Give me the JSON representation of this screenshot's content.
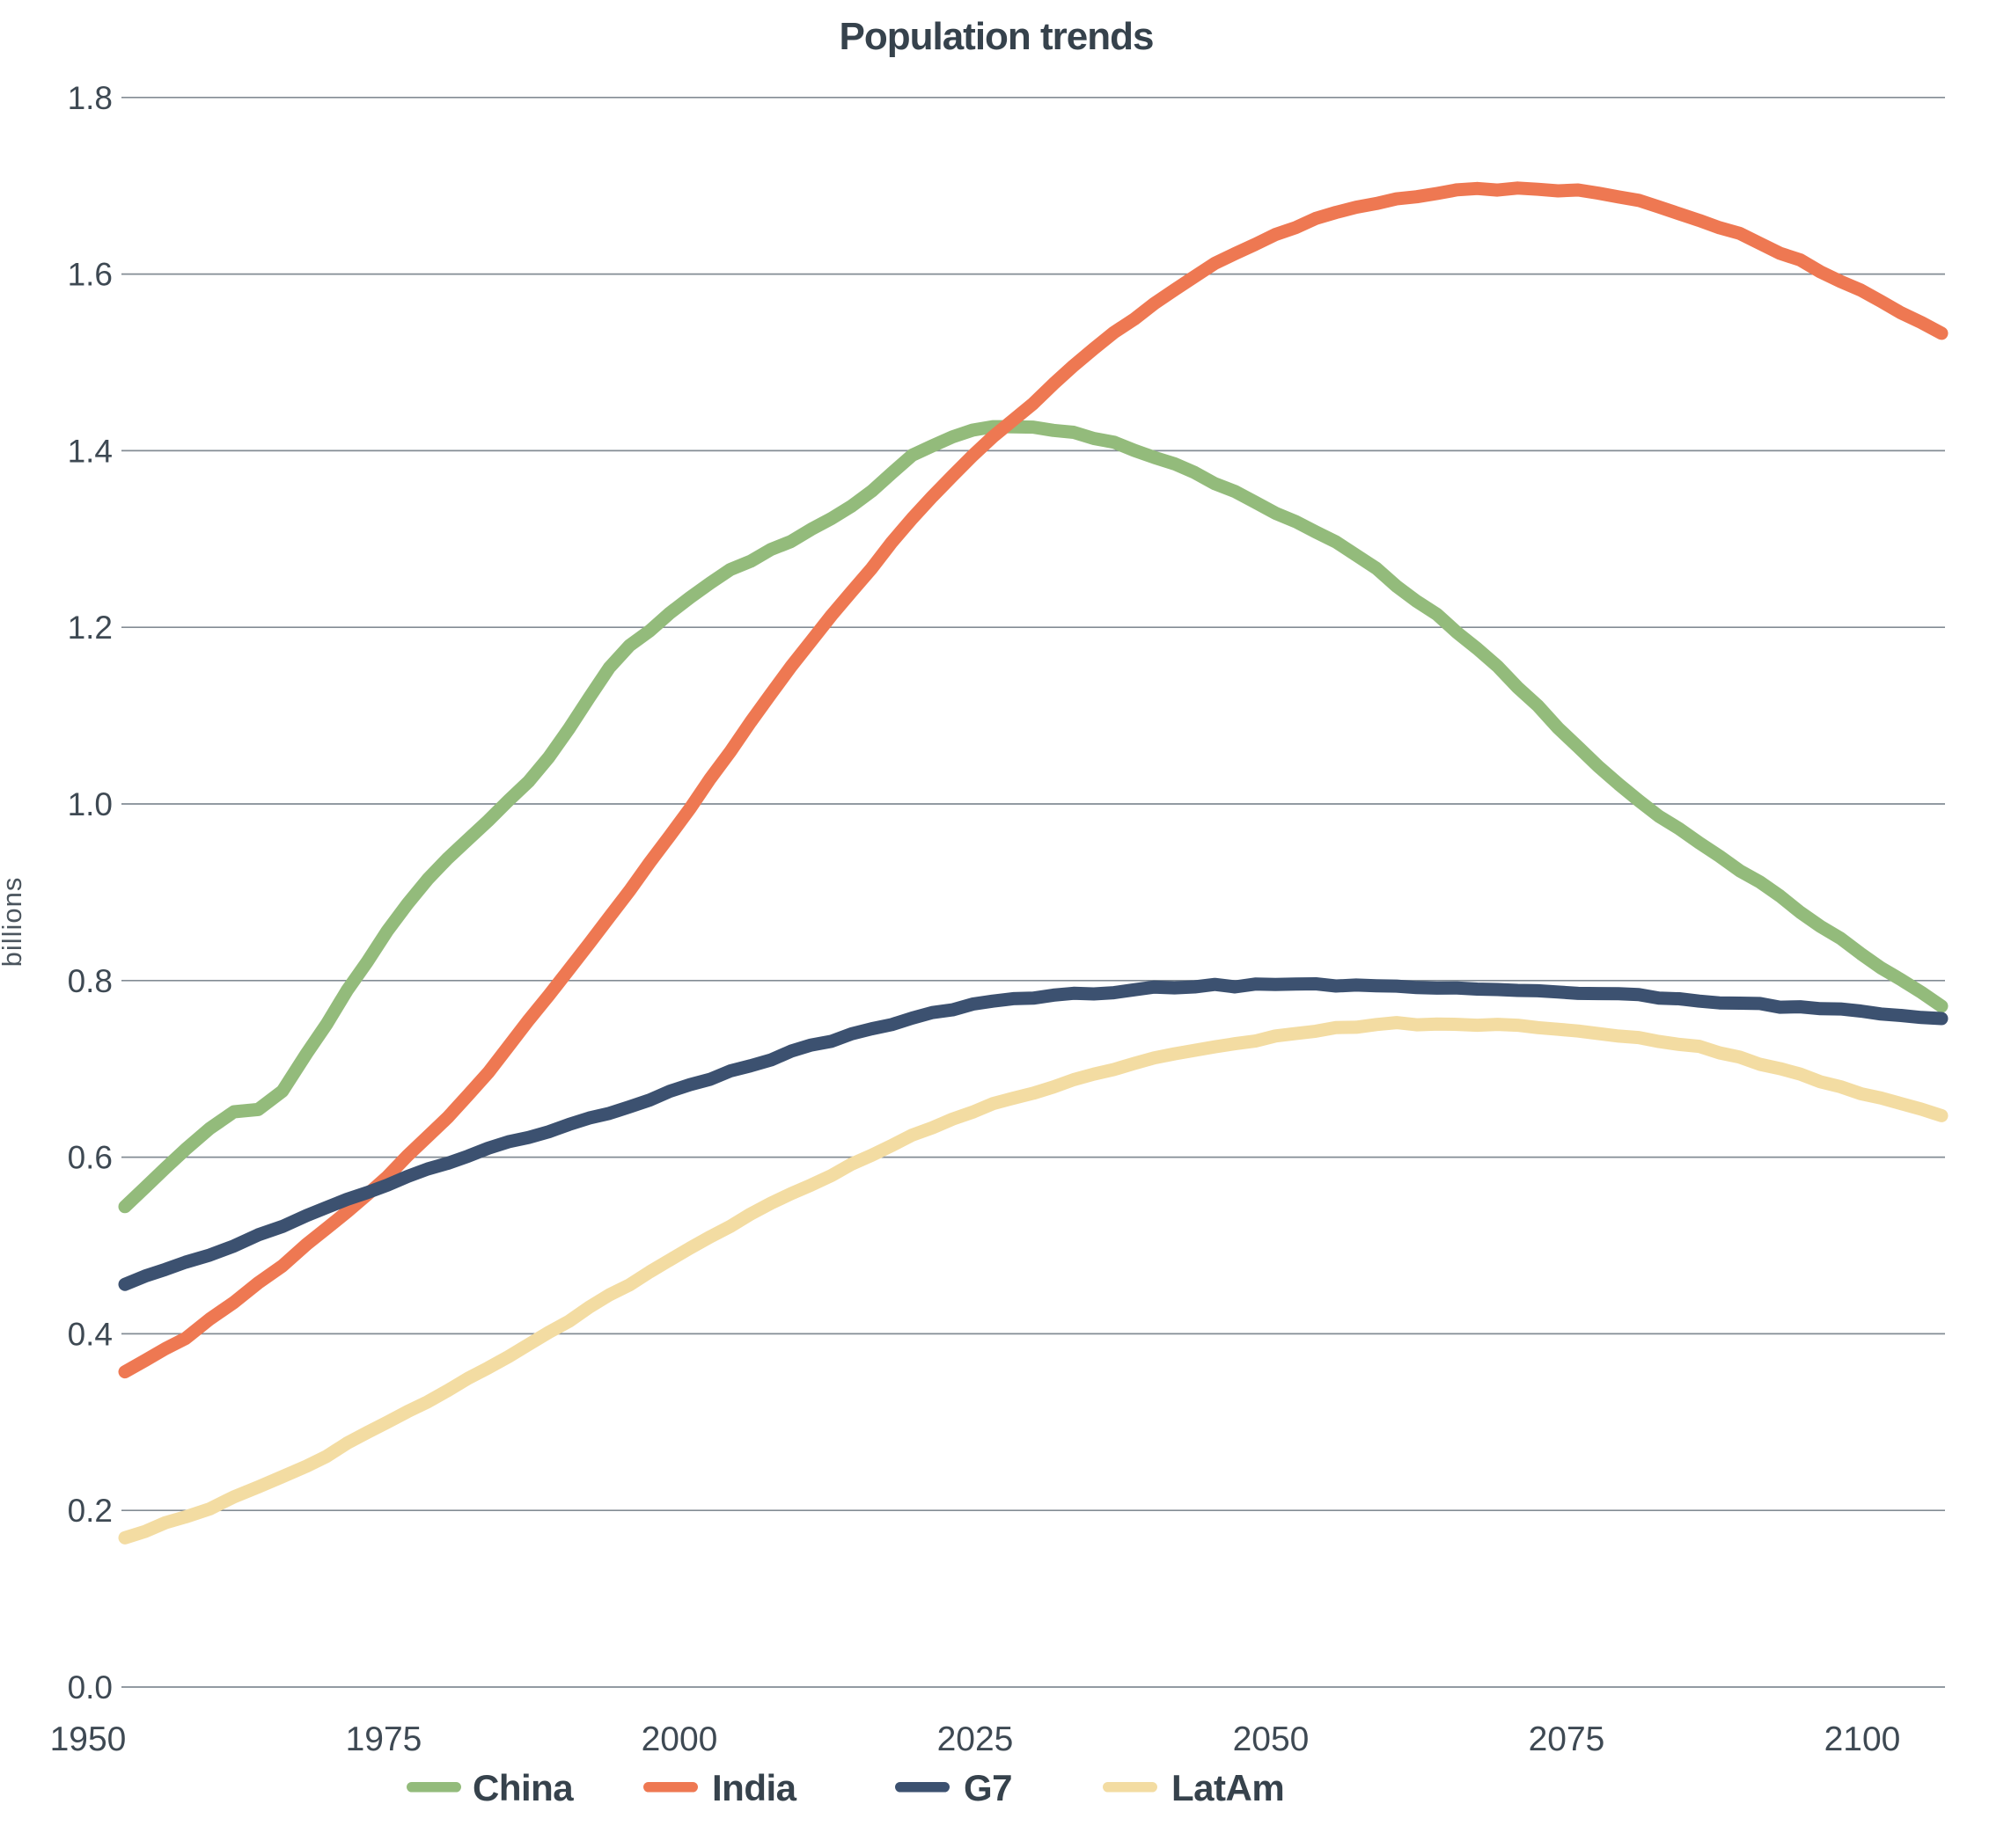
{
  "chart_data": {
    "type": "line",
    "title": "Population trends",
    "ylabel": "billions",
    "xlabel": "",
    "xlim": [
      1950,
      2100
    ],
    "ylim": [
      0.0,
      1.8
    ],
    "grid": "horizontal",
    "legend_position": "bottom",
    "x_ticks": [
      1950,
      1975,
      2000,
      2025,
      2050,
      2075,
      2100
    ],
    "y_ticks": [
      0.0,
      0.2,
      0.4,
      0.6,
      0.8,
      1.0,
      1.2,
      1.4,
      1.6,
      1.8
    ],
    "x": [
      1950,
      1955,
      1957,
      1959,
      1961,
      1963,
      1965,
      1970,
      1975,
      1980,
      1985,
      1990,
      1995,
      2000,
      2005,
      2010,
      2015,
      2020,
      2025,
      2030,
      2035,
      2040,
      2045,
      2050,
      2055,
      2060,
      2065,
      2070,
      2075,
      2080,
      2085,
      2090,
      2095,
      2100
    ],
    "series": [
      {
        "name": "China",
        "color": "#93BB7B",
        "values": [
          0.544,
          0.609,
          0.634,
          0.653,
          0.655,
          0.674,
          0.716,
          0.822,
          0.916,
          0.982,
          1.052,
          1.154,
          1.215,
          1.264,
          1.298,
          1.337,
          1.394,
          1.424,
          1.426,
          1.415,
          1.393,
          1.364,
          1.33,
          1.297,
          1.248,
          1.195,
          1.133,
          1.065,
          1.005,
          0.955,
          0.91,
          0.862,
          0.816,
          0.771
        ]
      },
      {
        "name": "India",
        "color": "#EE7852",
        "values": [
          0.357,
          0.395,
          0.415,
          0.436,
          0.456,
          0.477,
          0.5,
          0.557,
          0.623,
          0.696,
          0.784,
          0.871,
          0.964,
          1.06,
          1.154,
          1.24,
          1.322,
          1.396,
          1.454,
          1.515,
          1.566,
          1.612,
          1.645,
          1.67,
          1.685,
          1.694,
          1.697,
          1.694,
          1.683,
          1.662,
          1.635,
          1.604,
          1.569,
          1.533
        ]
      },
      {
        "name": "G7",
        "color": "#3C5170",
        "values": [
          0.456,
          0.48,
          0.49,
          0.501,
          0.511,
          0.522,
          0.534,
          0.56,
          0.585,
          0.609,
          0.629,
          0.65,
          0.673,
          0.696,
          0.719,
          0.739,
          0.757,
          0.773,
          0.78,
          0.786,
          0.791,
          0.794,
          0.795,
          0.795,
          0.794,
          0.792,
          0.79,
          0.787,
          0.783,
          0.778,
          0.773,
          0.768,
          0.763,
          0.757
        ]
      },
      {
        "name": "LatAm",
        "color": "#F3DCA2",
        "values": [
          0.169,
          0.193,
          0.203,
          0.214,
          0.226,
          0.239,
          0.251,
          0.287,
          0.323,
          0.362,
          0.401,
          0.443,
          0.483,
          0.522,
          0.558,
          0.591,
          0.624,
          0.652,
          0.673,
          0.695,
          0.711,
          0.724,
          0.737,
          0.746,
          0.751,
          0.751,
          0.748,
          0.743,
          0.735,
          0.724,
          0.706,
          0.686,
          0.667,
          0.647
        ]
      }
    ]
  }
}
